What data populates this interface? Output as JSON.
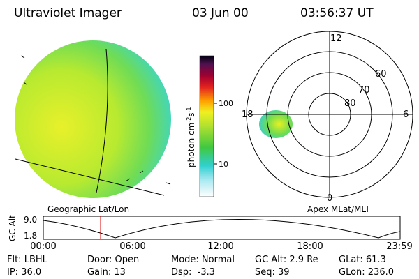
{
  "header": {
    "title": "Ultraviolet Imager",
    "date": "03 Jun 00",
    "time": "03:56:37 UT"
  },
  "colorbar": {
    "label": {
      "base": "photon cm",
      "exp1": "-2",
      "mid": "s",
      "exp2": "-1"
    },
    "ticks": [
      "100",
      "10"
    ]
  },
  "polar": {
    "mlt": {
      "top": "12",
      "left": "18",
      "right": "6",
      "bottom": "0"
    },
    "mlat": [
      "60",
      "70",
      "80"
    ]
  },
  "panels": {
    "left": "Geographic Lat/Lon",
    "right": "Apex MLat/MLT"
  },
  "altitude": {
    "label": "GC Alt",
    "max": "9.0",
    "min": "1.8",
    "times": [
      "00:00",
      "06:00",
      "12:00",
      "18:00",
      "23:59"
    ]
  },
  "footer": {
    "rows": [
      [
        "Flt: LBHL",
        "Door: Open",
        "Mode: Normal",
        "GC Alt: 2.9 Re",
        "GLat: 61.3"
      ],
      [
        "IP: 36.0",
        "Gain: 13",
        "Dsp:  -3.3",
        "Seq: 39",
        "GLon: 236.0"
      ]
    ]
  }
}
